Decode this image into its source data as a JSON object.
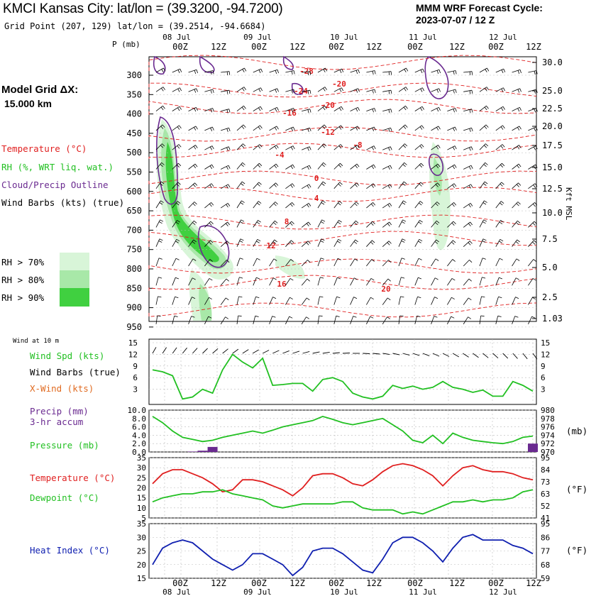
{
  "header": {
    "title": "KMCI Kansas City:  lat/lon = (39.3200, -94.7200)",
    "subtitle": "Grid Point (207, 129) lat/lon = (39.2514, -94.6684)",
    "cycle_line1": "MMM WRF Forecast Cycle:",
    "cycle_line2": "2023-07-07 / 12  Z",
    "grid_line1": "Model Grid ΔX:",
    "grid_line2": "15.000 km"
  },
  "colors": {
    "temperature": "#e02020",
    "rh": "#22c022",
    "cloud": "#6a2a90",
    "wind": "#000000",
    "xwind": "#e06a20",
    "heat_index": "#1020b0",
    "rh70": "#d8f5d8",
    "rh80": "#a8e8a8",
    "rh90": "#40d040",
    "grid": "#bbbbbb"
  },
  "legend": {
    "temperature": "Temperature (°C)",
    "rh": "RH (%, WRT liq. wat.)",
    "cloud": "Cloud/Precip Outline",
    "wind": "Wind Barbs (kts) (true)",
    "rh70": "RH > 70%",
    "rh80": "RH > 80%",
    "rh90": "RH > 90%"
  },
  "time_axis": {
    "hours": [
      "00Z",
      "12Z",
      "00Z",
      "12Z",
      "00Z",
      "12Z",
      "00Z",
      "12Z",
      "00Z",
      "12Z"
    ],
    "dates": [
      "08 Jul",
      "09 Jul",
      "10 Jul",
      "11 Jul",
      "12 Jul"
    ]
  },
  "chart_data": [
    {
      "type": "heatmap",
      "name": "skewt-time-section",
      "ylabel_left": "P (mb)",
      "ylabel_right": "Kft MSL",
      "pressure_ticks": [
        "300",
        "350",
        "400",
        "450",
        "500",
        "550",
        "600",
        "650",
        "700",
        "750",
        "800",
        "850",
        "900",
        "950"
      ],
      "height_ticks": [
        "30.0",
        "25.0",
        "22.5",
        "20.0",
        "17.5",
        "15.0",
        "12.5",
        "10.0",
        "7.5",
        "5.0",
        "2.5",
        "1.03"
      ],
      "temperature_contour_labels": [
        "-28",
        "-24",
        "-20",
        "-20",
        "-16",
        "-12",
        "-8",
        "-4",
        "0",
        "4",
        "8",
        "12",
        "16",
        "20"
      ]
    },
    {
      "type": "line",
      "name": "wind",
      "small_label": "Wind at 10 m",
      "labels": {
        "speed": "Wind Spd (kts)",
        "barbs": "Wind Barbs (true)",
        "xwind": "X-Wind (kts)"
      },
      "yticks": [
        "15",
        "12",
        "9",
        "6",
        "3"
      ],
      "ylim": [
        0,
        15
      ],
      "speed": [
        8.0,
        7.5,
        6.5,
        0.5,
        1.0,
        3.0,
        2.0,
        8.0,
        12.0,
        10.0,
        8.5,
        11.0,
        4.0,
        4.2,
        4.5,
        4.5,
        2.5,
        5.5,
        6.0,
        5.0,
        2.0,
        1.0,
        0.5,
        1.2,
        4.0,
        3.2,
        3.8,
        3.0,
        3.5,
        5.0,
        3.5,
        3.0,
        2.2,
        2.8,
        1.2,
        1.2,
        5.0,
        4.0,
        2.5
      ]
    },
    {
      "type": "line",
      "name": "precip-pressure",
      "labels": {
        "precip": "Precip (mm)",
        "precip_accum": "3-hr accum",
        "pressure": "Pressure (mb)"
      },
      "yticks_left": [
        "10.0",
        "8.0",
        "6.0",
        "4.0",
        "2.0",
        "0.0"
      ],
      "yticks_right": [
        "980",
        "978",
        "976",
        "974",
        "972",
        "970"
      ],
      "right_unit": "(mb)",
      "ylim_left": [
        0,
        10
      ],
      "ylim_right": [
        970,
        980
      ],
      "precip_mm": [
        0,
        0,
        0,
        0,
        0.1,
        0.3,
        1.2,
        0,
        0,
        0,
        0,
        0,
        0,
        0,
        0,
        0,
        0,
        0,
        0,
        0,
        0,
        0,
        0,
        0,
        0,
        0,
        0,
        0,
        0,
        0,
        0,
        0,
        0,
        0,
        0,
        0,
        0,
        0,
        2.0
      ],
      "pressure_mb": [
        978.5,
        977,
        975,
        973.5,
        973,
        972.5,
        972.8,
        973.5,
        974,
        974.5,
        975,
        974.5,
        975.2,
        976,
        976.5,
        977,
        977.5,
        978.5,
        977.8,
        977,
        976.5,
        977,
        977.5,
        978,
        976.5,
        975,
        972.8,
        972.2,
        974,
        972,
        974.5,
        973.5,
        972.8,
        972.5,
        972.2,
        972,
        972.5,
        973.5,
        973.8
      ]
    },
    {
      "type": "line",
      "name": "temperature-dewpoint",
      "labels": {
        "temperature": "Temperature (°C)",
        "dewpoint": "Dewpoint (°C)"
      },
      "yticks_left": [
        "35",
        "30",
        "25",
        "20",
        "15",
        "10",
        "5"
      ],
      "yticks_right": [
        "95",
        "84",
        "73",
        "63",
        "52",
        "41"
      ],
      "right_unit": "(°F)",
      "ylim": [
        5,
        35
      ],
      "temperature_c": [
        22,
        27,
        29,
        29,
        27,
        25,
        22,
        18,
        19,
        24,
        24,
        23,
        21,
        19,
        16,
        20,
        26,
        27,
        27,
        25,
        22,
        21,
        24,
        28,
        31,
        32,
        31,
        29,
        26,
        21,
        26,
        30,
        31,
        29,
        28,
        28,
        27,
        25,
        24
      ],
      "dewpoint_c": [
        13,
        15,
        16,
        17,
        17,
        18,
        18,
        19,
        17,
        16,
        15,
        14,
        11,
        10,
        11,
        12,
        12,
        12,
        12,
        13,
        13,
        10,
        9,
        9,
        9,
        7,
        8,
        7,
        9,
        11,
        13,
        13,
        14,
        13,
        14,
        14,
        15,
        18,
        19
      ]
    },
    {
      "type": "line",
      "name": "heat-index",
      "labels": {
        "heat_index": "Heat Index (°C)"
      },
      "yticks_left": [
        "35",
        "30",
        "25",
        "20",
        "15"
      ],
      "yticks_right": [
        "95",
        "86",
        "77",
        "68",
        "59"
      ],
      "right_unit": "(°F)",
      "ylim": [
        15,
        35
      ],
      "heat_index_c": [
        20,
        26,
        28,
        29,
        28,
        25,
        22,
        20,
        18,
        20,
        24,
        24,
        22,
        20,
        16,
        19,
        25,
        26,
        26,
        24,
        21,
        18,
        17,
        22,
        28,
        30,
        30,
        28,
        25,
        21,
        26,
        30,
        31,
        29,
        29,
        29,
        27,
        26,
        24
      ]
    }
  ]
}
